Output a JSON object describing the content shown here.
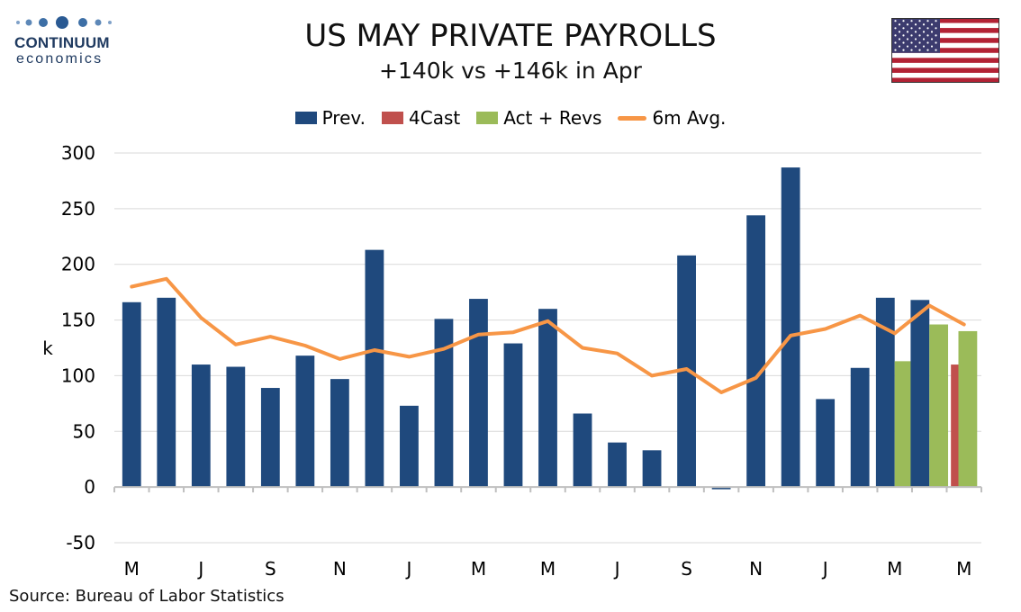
{
  "logo": {
    "word1": "CONTINUUM",
    "word2": "economics"
  },
  "chart_data": {
    "type": "bar",
    "title": "US MAY PRIVATE PAYROLLS",
    "subtitle": "+140k vs +146k in Apr",
    "ylabel": "k",
    "ylim": [
      -50,
      300
    ],
    "yticks": [
      "300",
      "250",
      "200",
      "150",
      "100",
      "50",
      "0",
      "-50"
    ],
    "grid": true,
    "legend_position": "top",
    "x_tick_labels": [
      "M",
      "J",
      "S",
      "N",
      "J",
      "M",
      "M",
      "J",
      "S",
      "N",
      "J",
      "M",
      "M"
    ],
    "series": [
      {
        "name": "Prev.",
        "color": "#1f497d",
        "values": [
          166,
          170,
          110,
          108,
          89,
          118,
          97,
          213,
          73,
          151,
          169,
          129,
          160,
          66,
          40,
          33,
          208,
          -2,
          244,
          287,
          79,
          107,
          170,
          168,
          null
        ]
      },
      {
        "name": "4Cast",
        "color": "#c0504d",
        "values": [
          null,
          null,
          null,
          null,
          null,
          null,
          null,
          null,
          null,
          null,
          null,
          null,
          null,
          null,
          null,
          null,
          null,
          null,
          null,
          null,
          null,
          null,
          null,
          null,
          110
        ]
      },
      {
        "name": "Act + Revs",
        "color": "#9bbb59",
        "values": [
          null,
          null,
          null,
          null,
          null,
          null,
          null,
          null,
          null,
          null,
          null,
          null,
          null,
          null,
          null,
          null,
          null,
          null,
          null,
          null,
          null,
          null,
          113,
          146,
          140
        ]
      },
      {
        "name": "6m Avg.",
        "color": "#f79646",
        "type": "line",
        "values": [
          180,
          187,
          152,
          128,
          135,
          127,
          115,
          123,
          117,
          124,
          137,
          139,
          149,
          125,
          120,
          100,
          106,
          85,
          98,
          136,
          142,
          154,
          138,
          163,
          146
        ]
      }
    ]
  },
  "source": "Source: Bureau of Labor Statistics"
}
